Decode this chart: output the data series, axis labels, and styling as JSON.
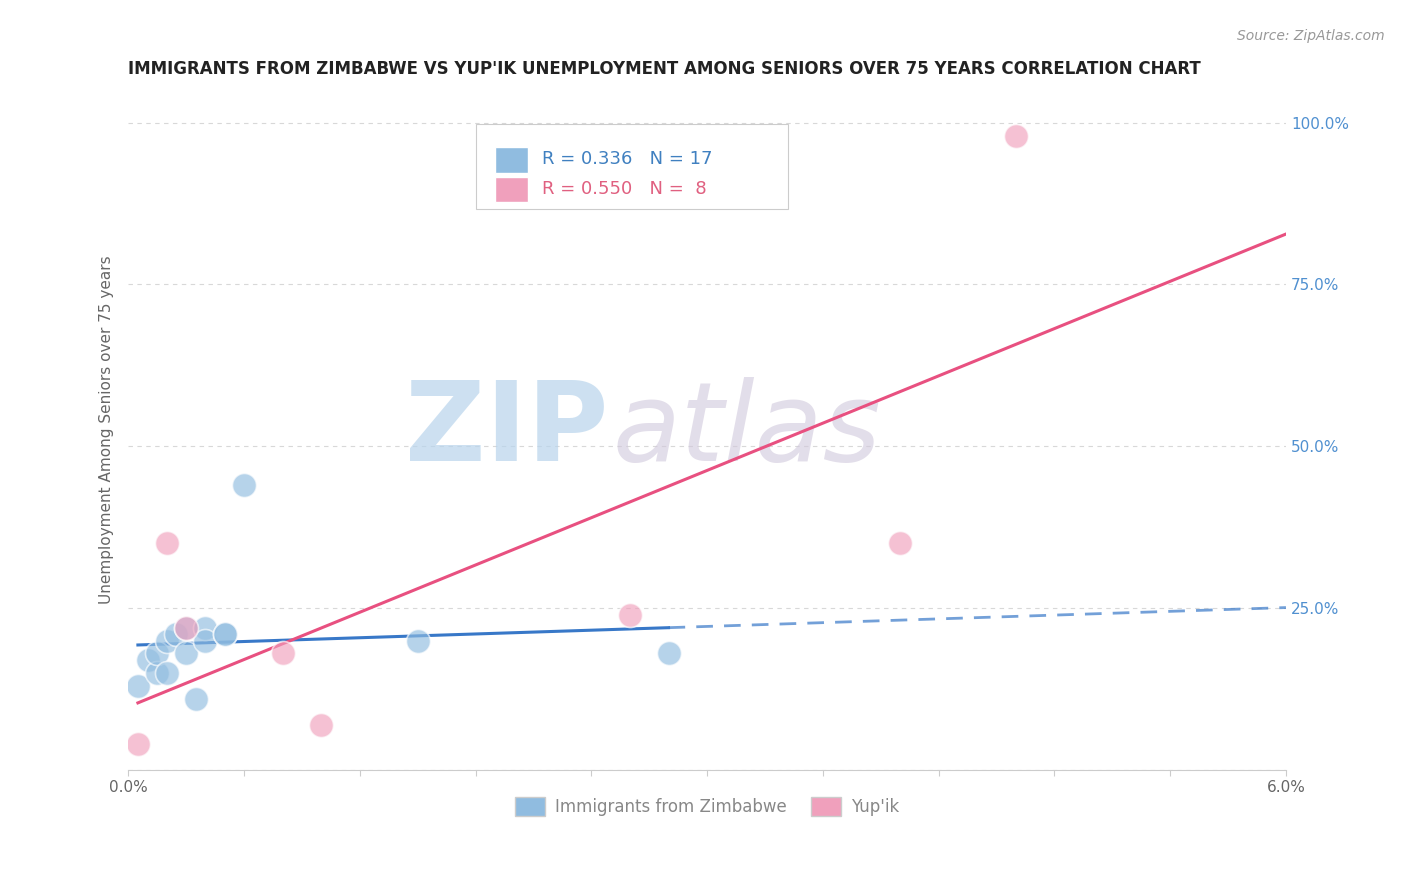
{
  "title": "IMMIGRANTS FROM ZIMBABWE VS YUP'IK UNEMPLOYMENT AMONG SENIORS OVER 75 YEARS CORRELATION CHART",
  "source": "Source: ZipAtlas.com",
  "ylabel": "Unemployment Among Seniors over 75 years",
  "xlim": [
    0.0,
    0.06
  ],
  "ylim": [
    0.0,
    1.05
  ],
  "xticks": [
    0.0,
    0.006,
    0.012,
    0.018,
    0.024,
    0.03,
    0.036,
    0.042,
    0.048,
    0.054,
    0.06
  ],
  "yticks": [
    0.0,
    0.25,
    0.5,
    0.75,
    1.0
  ],
  "ytick_labels": [
    "",
    "25.0%",
    "50.0%",
    "75.0%",
    "100.0%"
  ],
  "legend_entries": [
    {
      "label": "Immigrants from Zimbabwe",
      "R": 0.336,
      "N": 17,
      "color": "#a8c8e8"
    },
    {
      "label": "Yup'ik",
      "R": 0.55,
      "N": 8,
      "color": "#f4b0c8"
    }
  ],
  "zimbabwe_x": [
    0.0005,
    0.001,
    0.0015,
    0.0015,
    0.002,
    0.002,
    0.0025,
    0.003,
    0.003,
    0.0035,
    0.004,
    0.004,
    0.005,
    0.005,
    0.006,
    0.015,
    0.028
  ],
  "zimbabwe_y": [
    0.13,
    0.17,
    0.15,
    0.18,
    0.15,
    0.2,
    0.21,
    0.22,
    0.18,
    0.11,
    0.22,
    0.2,
    0.21,
    0.21,
    0.44,
    0.2,
    0.18
  ],
  "yupik_x": [
    0.0005,
    0.002,
    0.003,
    0.008,
    0.01,
    0.026,
    0.04,
    0.046
  ],
  "yupik_y": [
    0.04,
    0.35,
    0.22,
    0.18,
    0.07,
    0.24,
    0.35,
    0.98
  ],
  "blue_scatter_color": "#90bce0",
  "pink_scatter_color": "#f0a0bc",
  "blue_line_color": "#3878c8",
  "pink_line_color": "#e85080",
  "blue_tick_color": "#5090d0",
  "watermark_zip_color": "#b8d4ec",
  "watermark_atlas_color": "#d0c8dc",
  "background_color": "#ffffff",
  "grid_color": "#d8d8d8",
  "title_color": "#222222",
  "source_color": "#999999",
  "ylabel_color": "#666666",
  "legend_text_color_blue": "#4080c0",
  "legend_text_color_pink": "#e06080"
}
